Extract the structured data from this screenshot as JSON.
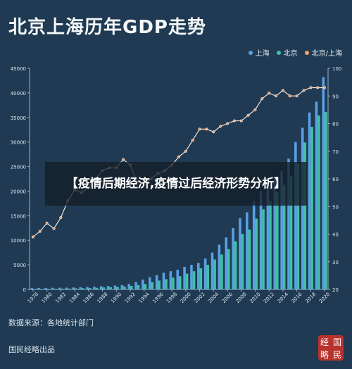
{
  "header": {
    "title": "北京上海历年GDP走势"
  },
  "legend": [
    {
      "label": "上海",
      "color": "#5aa0e6"
    },
    {
      "label": "北京",
      "color": "#3fc3a0"
    },
    {
      "label": "北京/上海",
      "color": "#f0a070"
    }
  ],
  "banner": {
    "text": "【疫情后期经济,疫情过后经济形势分析】"
  },
  "footer": {
    "source": "数据来源：各地统计部门",
    "brand": "国民经略出品"
  },
  "seal": {
    "chars": [
      "经",
      "国",
      "略",
      "民"
    ]
  },
  "chart_data": {
    "type": "bar",
    "x": [
      1978,
      1979,
      1980,
      1981,
      1982,
      1983,
      1984,
      1985,
      1986,
      1987,
      1988,
      1989,
      1990,
      1991,
      1992,
      1993,
      1994,
      1995,
      1996,
      1997,
      1998,
      1999,
      2000,
      2001,
      2002,
      2003,
      2004,
      2005,
      2006,
      2007,
      2008,
      2009,
      2010,
      2011,
      2012,
      2013,
      2014,
      2015,
      2016,
      2017,
      2018,
      2019,
      2020
    ],
    "x_ticks": [
      1978,
      1980,
      1982,
      1984,
      1986,
      1988,
      1990,
      1992,
      1994,
      1996,
      1998,
      2000,
      2002,
      2004,
      2006,
      2008,
      2010,
      2012,
      2014,
      2016,
      2018,
      2020
    ],
    "series": [
      {
        "name": "上海",
        "kind": "bar",
        "axis": "left",
        "values": [
          270,
          290,
          320,
          330,
          350,
          360,
          390,
          470,
          490,
          550,
          650,
          700,
          780,
          900,
          1100,
          1500,
          2000,
          2500,
          2900,
          3400,
          3700,
          4000,
          4600,
          5000,
          5400,
          6300,
          7500,
          9100,
          10600,
          12500,
          14500,
          15700,
          17900,
          20000,
          21300,
          22800,
          24100,
          26600,
          30000,
          32900,
          36000,
          38200,
          43200
        ]
      },
      {
        "name": "北京",
        "kind": "bar",
        "axis": "left",
        "values": [
          110,
          120,
          140,
          140,
          160,
          180,
          220,
          260,
          280,
          330,
          410,
          450,
          500,
          600,
          710,
          890,
          1100,
          1500,
          1800,
          2100,
          2400,
          2700,
          3200,
          3700,
          4300,
          5000,
          6100,
          7100,
          8200,
          9800,
          11300,
          12200,
          14400,
          16300,
          17900,
          19800,
          21300,
          23000,
          25700,
          29900,
          33100,
          35400,
          36100
        ]
      },
      {
        "name": "北京/上海",
        "kind": "line",
        "axis": "right",
        "values": [
          39,
          41,
          44,
          42,
          46,
          52,
          56,
          55,
          57,
          60,
          63,
          64,
          64,
          67,
          65,
          59,
          58,
          60,
          62,
          63,
          65,
          68,
          70,
          74,
          78,
          78,
          77,
          79,
          80,
          81,
          81,
          83,
          85,
          89,
          91,
          90,
          92,
          90,
          90,
          92,
          93,
          93,
          93
        ]
      }
    ],
    "y_left": {
      "range": [
        0,
        45000
      ],
      "ticks": [
        0,
        5000,
        10000,
        15000,
        20000,
        25000,
        30000,
        35000,
        40000,
        45000
      ]
    },
    "y_right": {
      "range": [
        20,
        100
      ],
      "ticks": [
        20,
        30,
        40,
        50,
        60,
        70,
        80,
        90,
        100
      ]
    },
    "grid": false,
    "legend_position": "top-right"
  }
}
